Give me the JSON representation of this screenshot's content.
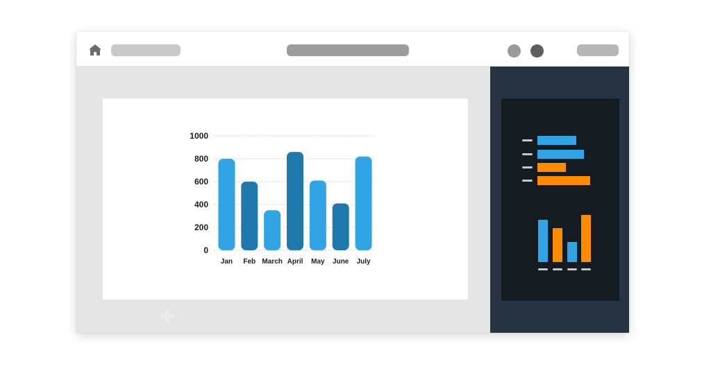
{
  "window": {
    "icons": {
      "home": "home-icon",
      "add": "add-icon"
    }
  },
  "chart_data": {
    "type": "bar",
    "categories": [
      "Jan",
      "Feb",
      "March",
      "April",
      "May",
      "June",
      "July"
    ],
    "values": [
      800,
      600,
      350,
      860,
      610,
      410,
      820
    ],
    "ylim": [
      0,
      1000
    ],
    "yticks": [
      "1000",
      "800",
      "600",
      "400",
      "200",
      "0"
    ],
    "grid": true,
    "colors": [
      "#30a4e4",
      "#1f79ad",
      "#30a4e4",
      "#1f79ad",
      "#30a4e4",
      "#1f79ad",
      "#30a4e4"
    ]
  },
  "colors": {
    "blue": "#30a4e4",
    "dark_blue": "#1f79ad",
    "orange": "#ff8c00",
    "panel_bg": "#263342",
    "preview_bg": "#141b21"
  }
}
